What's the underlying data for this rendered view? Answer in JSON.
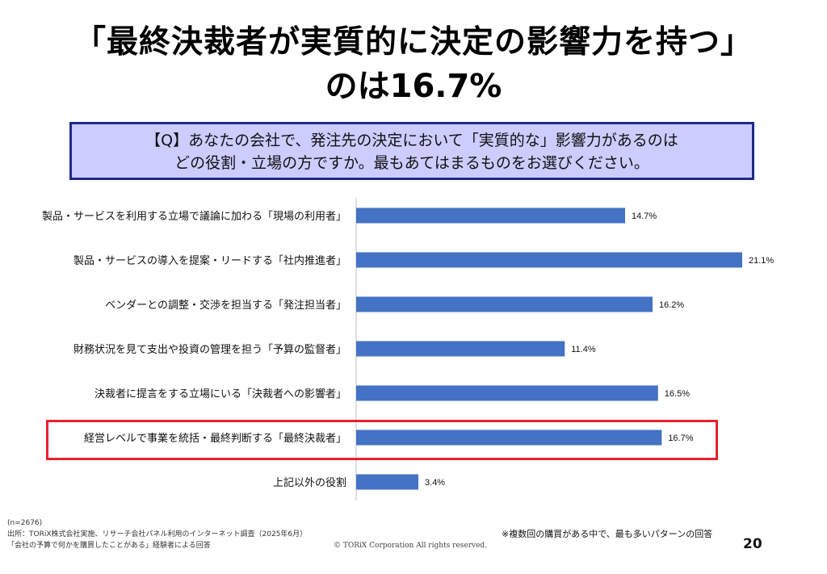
{
  "title": {
    "line1": "「最終決裁者が実質的に決定の影響力を持つ」",
    "line2": "のは16.7%"
  },
  "question": {
    "line1": "【Q】あなたの会社で、発注先の決定において「実質的な」影響力があるのは",
    "line2": "どの役割・立場の方ですか。最もあてはまるものをお選びください。"
  },
  "chart_data": {
    "type": "bar",
    "orientation": "horizontal",
    "categories": [
      "製品・サービスを利用する立場で議論に加わる「現場の利用者」",
      "製品・サービスの導入を提案・リードする「社内推進者」",
      "ベンダーとの調整・交渉を担当する「発注担当者」",
      "財務状況を見て支出や投資の管理を担う「予算の監督者」",
      "決裁者に提言をする立場にいる「決裁者への影響者」",
      "経営レベルで事業を統括・最終判断する「最終決裁者」",
      "上記以外の役割"
    ],
    "values": [
      14.7,
      21.1,
      16.2,
      11.4,
      16.5,
      16.7,
      3.4
    ],
    "value_labels": [
      "14.7%",
      "21.1%",
      "16.2%",
      "11.4%",
      "16.5%",
      "16.7%",
      "3.4%"
    ],
    "highlighted_category_index": 5,
    "bar_color": "#4472c4",
    "highlight_color": "#e8212e",
    "grid": false
  },
  "footer": {
    "sample": "(n=2676)",
    "source": "出所：TORiX株式会社実施、リサーチ会社パネル利用のインターネット調査（2025年6月）",
    "respondents": "「会社の予算で何かを購買したことがある」経験者による回答",
    "note": "※複数回の購買がある中で、最も多いパターンの回答",
    "copyright": "© TORiX Corporation All rights reserved.",
    "page_number": "20"
  }
}
